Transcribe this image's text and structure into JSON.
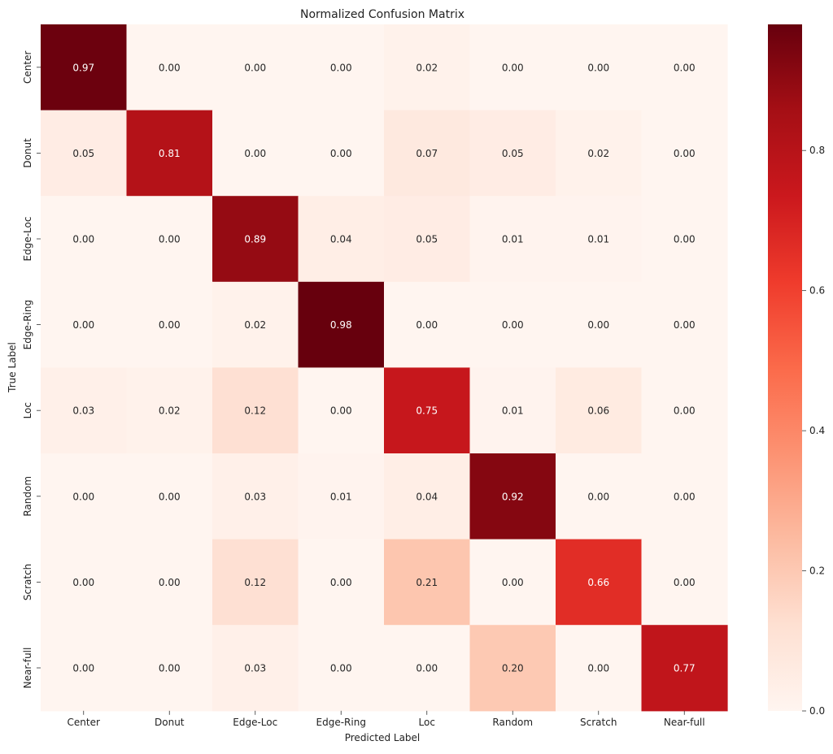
{
  "chart_data": {
    "type": "heatmap",
    "title": "Normalized Confusion Matrix",
    "xlabel": "Predicted Label",
    "ylabel": "True Label",
    "x_categories": [
      "Center",
      "Donut",
      "Edge-Loc",
      "Edge-Ring",
      "Loc",
      "Random",
      "Scratch",
      "Near-full"
    ],
    "y_categories": [
      "Center",
      "Donut",
      "Edge-Loc",
      "Edge-Ring",
      "Loc",
      "Random",
      "Scratch",
      "Near-full"
    ],
    "matrix": [
      [
        0.97,
        0.0,
        0.0,
        0.0,
        0.02,
        0.0,
        0.0,
        0.0
      ],
      [
        0.05,
        0.81,
        0.0,
        0.0,
        0.07,
        0.05,
        0.02,
        0.0
      ],
      [
        0.0,
        0.0,
        0.89,
        0.04,
        0.05,
        0.01,
        0.01,
        0.0
      ],
      [
        0.0,
        0.0,
        0.02,
        0.98,
        0.0,
        0.0,
        0.0,
        0.0
      ],
      [
        0.03,
        0.02,
        0.12,
        0.0,
        0.75,
        0.01,
        0.06,
        0.0
      ],
      [
        0.0,
        0.0,
        0.03,
        0.01,
        0.04,
        0.92,
        0.0,
        0.0
      ],
      [
        0.0,
        0.0,
        0.12,
        0.0,
        0.21,
        0.0,
        0.66,
        0.0
      ],
      [
        0.0,
        0.0,
        0.03,
        0.0,
        0.0,
        0.2,
        0.0,
        0.77
      ]
    ],
    "value_format": "0.00",
    "colormap": "Reds",
    "color_range": [
      0.0,
      0.98
    ],
    "colorbar": {
      "ticks": [
        0.0,
        0.2,
        0.4,
        0.6,
        0.8
      ],
      "tick_labels": [
        "0.0",
        "0.2",
        "0.4",
        "0.6",
        "0.8"
      ]
    },
    "grid": false
  }
}
